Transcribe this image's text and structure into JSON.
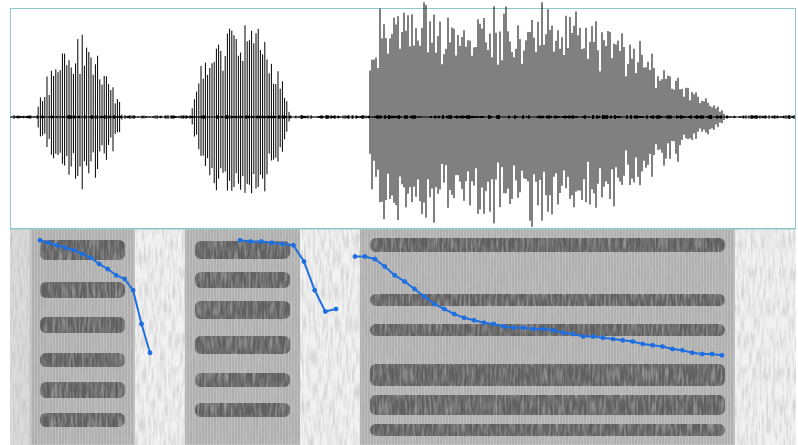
{
  "panels": {
    "waveform": {
      "name": "waveform-panel"
    },
    "spectrogram": {
      "name": "spectrogram-panel"
    }
  },
  "colors": {
    "background": "#ffffff",
    "panel_border": "#8fc8c8",
    "waveform": "#000000",
    "pitch_track": "#1f6fe0",
    "spectrogram_light": "#f0f0f0",
    "spectrogram_dark": "#101010"
  },
  "pitch_track": {
    "segments": [
      {
        "points": [
          0.05,
          0.07,
          0.09,
          0.11,
          0.13,
          0.16,
          0.19,
          0.24,
          0.28,
          0.33,
          0.36,
          0.45,
          0.72,
          0.95
        ]
      },
      {
        "points": [
          0.05,
          0.06,
          0.06,
          0.07,
          0.08,
          0.09,
          0.22,
          0.45,
          0.62,
          0.6
        ]
      },
      {
        "points": [
          0.18,
          0.18,
          0.2,
          0.26,
          0.33,
          0.38,
          0.44,
          0.5,
          0.56,
          0.6,
          0.64,
          0.67,
          0.69,
          0.71,
          0.72,
          0.74,
          0.75,
          0.75,
          0.76,
          0.76,
          0.77,
          0.79,
          0.8,
          0.82,
          0.82,
          0.83,
          0.84,
          0.85,
          0.86,
          0.88,
          0.89,
          0.9,
          0.92,
          0.93,
          0.95,
          0.96,
          0.96,
          0.97
        ]
      }
    ]
  }
}
